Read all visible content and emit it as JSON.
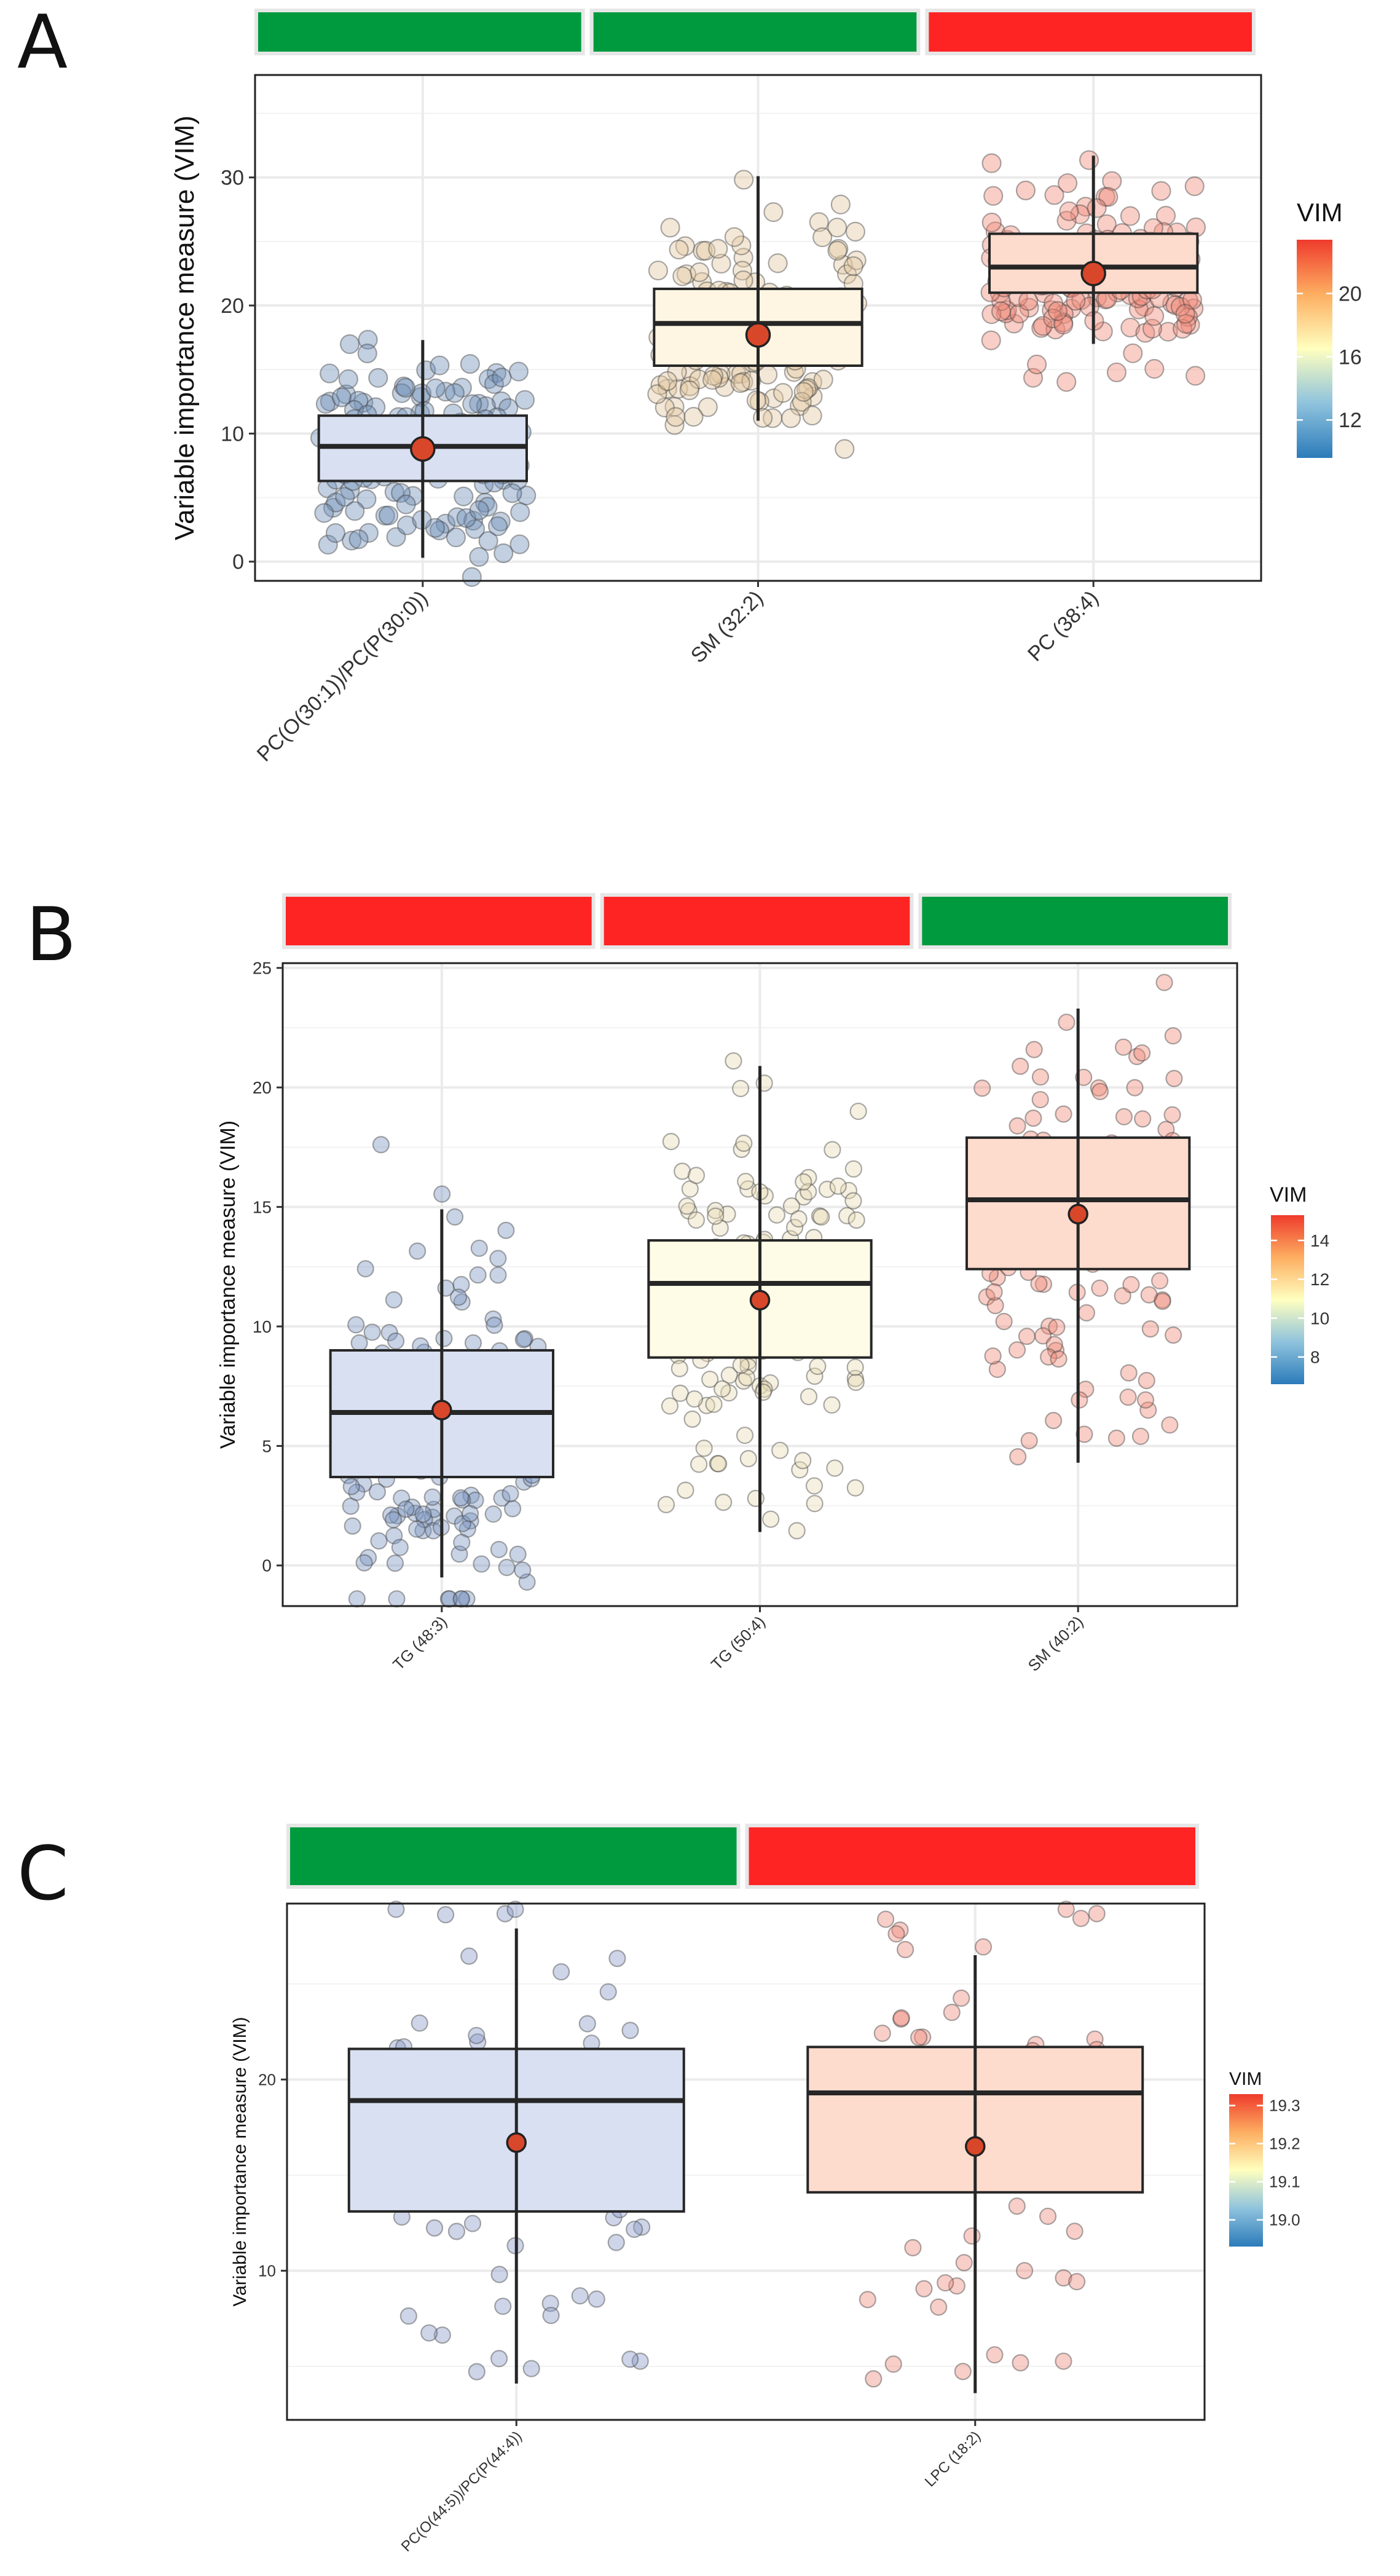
{
  "colors": {
    "green": "#009a3e",
    "red": "#fe2424",
    "median_point": "#d9472b",
    "box_line": "#262626",
    "grid": "#ebebeb",
    "vim_scale": [
      "#2b7bba",
      "#8fc3dd",
      "#ffffbf",
      "#fdae61",
      "#ef3b2c"
    ]
  },
  "chart_data": [
    {
      "panel_label": "A",
      "type": "box",
      "title": "",
      "xlabel": "",
      "ylabel": "Variable importance measure (VIM)",
      "ylim": [
        -1.5,
        38
      ],
      "yticks": [
        0,
        10,
        20,
        30
      ],
      "ytick_labels": [
        "0",
        "10",
        "20",
        "30"
      ],
      "categories": [
        "PC(O(30:1))/PC(P(30:0))",
        "SM (32:2)",
        "PC (38:4)"
      ],
      "category_bars": [
        "green",
        "green",
        "red"
      ],
      "box_colors": [
        "#d9e0f2",
        "#fef5e2",
        "#fddbcd"
      ],
      "point_colors": [
        "#6f8fb8",
        "#e3c9a3",
        "#f08a7a"
      ],
      "boxes": [
        {
          "q1": 6.3,
          "median": 9.0,
          "q3": 11.4,
          "whisker_low": 0.3,
          "whisker_high": 17.3,
          "mean": 8.8
        },
        {
          "q1": 15.3,
          "median": 18.6,
          "q3": 21.3,
          "whisker_low": 11.0,
          "whisker_high": 30.1,
          "mean": 17.7
        },
        {
          "q1": 21.0,
          "median": 23.0,
          "q3": 25.6,
          "whisker_low": 17.0,
          "whisker_high": 31.7,
          "mean": 22.5
        }
      ],
      "legend": {
        "title": "VIM",
        "ticks": [
          "12",
          "16",
          "20"
        ],
        "tick_values": [
          12,
          16,
          20
        ],
        "range": [
          9.6,
          23.4
        ]
      }
    },
    {
      "panel_label": "B",
      "type": "box",
      "title": "",
      "xlabel": "",
      "ylabel": "Variable importance measure (VIM)",
      "ylim": [
        -1.7,
        25.2
      ],
      "yticks": [
        0,
        5,
        10,
        15,
        20,
        25
      ],
      "ytick_labels": [
        "0",
        "5",
        "10",
        "15",
        "20",
        "25"
      ],
      "categories": [
        "TG (48:3)",
        "TG (50:4)",
        "SM (40:2)"
      ],
      "category_bars": [
        "red",
        "red",
        "green"
      ],
      "box_colors": [
        "#d9e0f2",
        "#fefbe6",
        "#fddbcd"
      ],
      "point_colors": [
        "#7d95c0",
        "#e6dcb4",
        "#ef8a76"
      ],
      "boxes": [
        {
          "q1": 3.7,
          "median": 6.4,
          "q3": 9.0,
          "whisker_low": -0.5,
          "whisker_high": 14.9,
          "mean": 6.5
        },
        {
          "q1": 8.7,
          "median": 11.8,
          "q3": 13.6,
          "whisker_low": 1.4,
          "whisker_high": 20.9,
          "mean": 11.1
        },
        {
          "q1": 12.4,
          "median": 15.3,
          "q3": 17.9,
          "whisker_low": 4.3,
          "whisker_high": 23.3,
          "mean": 14.7
        }
      ],
      "legend": {
        "title": "VIM",
        "ticks": [
          "8",
          "10",
          "12",
          "14"
        ],
        "tick_values": [
          8,
          10,
          12,
          14
        ],
        "range": [
          6.6,
          15.3
        ]
      }
    },
    {
      "panel_label": "C",
      "type": "box",
      "title": "",
      "xlabel": "",
      "ylabel": "Variable importance measure (VIM)",
      "ylim": [
        2.2,
        29.2
      ],
      "yticks": [
        10,
        20
      ],
      "ytick_labels": [
        "10",
        "20"
      ],
      "gridlines_minor": [
        5,
        15,
        25
      ],
      "categories": [
        "PC(O(44:5))/PC(P(44:4))",
        "LPC (18:2)"
      ],
      "category_bars": [
        "green",
        "red"
      ],
      "box_colors": [
        "#d9e0f2",
        "#fddbcd"
      ],
      "point_colors": [
        "#8a9cc8",
        "#ee8a7b"
      ],
      "boxes": [
        {
          "q1": 13.1,
          "median": 18.9,
          "q3": 21.6,
          "whisker_low": 4.1,
          "whisker_high": 27.9,
          "mean": 16.7
        },
        {
          "q1": 14.1,
          "median": 19.3,
          "q3": 21.7,
          "whisker_low": 3.6,
          "whisker_high": 26.5,
          "mean": 16.5
        }
      ],
      "legend": {
        "title": "VIM",
        "ticks": [
          "19.0",
          "19.1",
          "19.2",
          "19.3"
        ],
        "tick_values": [
          19.0,
          19.1,
          19.2,
          19.3
        ],
        "range": [
          18.93,
          19.33
        ]
      }
    }
  ]
}
